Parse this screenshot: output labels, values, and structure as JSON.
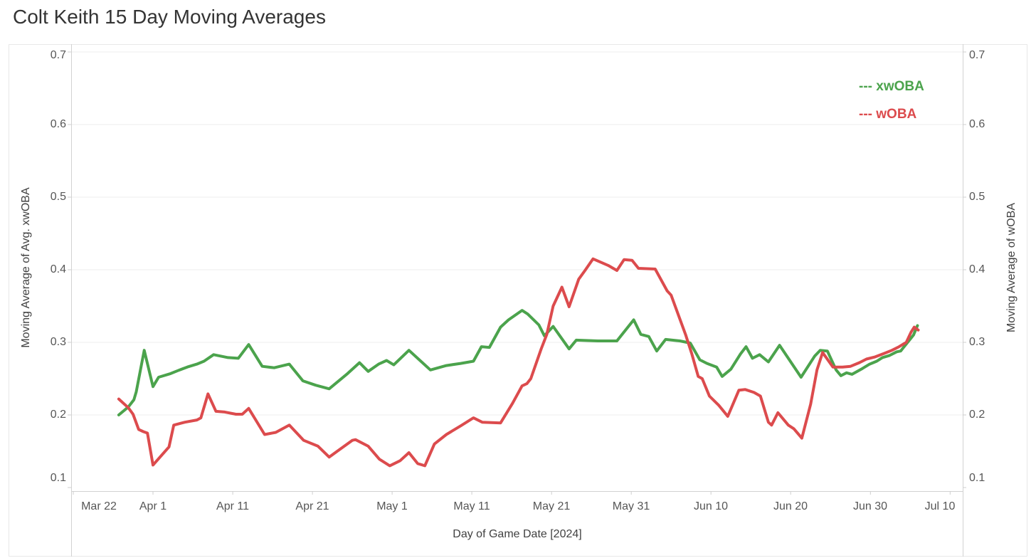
{
  "title": "Colt Keith 15 Day Moving Averages",
  "chart_data": {
    "type": "line",
    "title": "Colt Keith 15 Day Moving Averages",
    "background": "#ffffff",
    "grid": "horizontal-on",
    "legend_position": "top-right-inside",
    "legend": [
      {
        "label": "--- xwOBA",
        "color": "#4BA34C"
      },
      {
        "label": "--- wOBA",
        "color": "#DC4B4D"
      }
    ],
    "x_axis": {
      "label": "Day of Game Date [2024]",
      "domain_days": [
        -0.27,
        111.58
      ],
      "day_zero": "Mar 22",
      "ticks": [
        {
          "label": "Mar 22",
          "day": 0
        },
        {
          "label": "Apr 1",
          "day": 10
        },
        {
          "label": "Apr 11",
          "day": 20
        },
        {
          "label": "Apr 21",
          "day": 30
        },
        {
          "label": "May 1",
          "day": 40
        },
        {
          "label": "May 11",
          "day": 50
        },
        {
          "label": "May 21",
          "day": 60
        },
        {
          "label": "May 31",
          "day": 70
        },
        {
          "label": "Jun 10",
          "day": 80
        },
        {
          "label": "Jun 20",
          "day": 90
        },
        {
          "label": "Jun 30",
          "day": 100
        },
        {
          "label": "Jul 10",
          "day": 110
        }
      ]
    },
    "y_axis_left": {
      "label": "Moving Average of Avg. xwOBA",
      "tick_values": [
        0.1,
        0.2,
        0.3,
        0.4,
        0.5,
        0.6,
        0.7
      ],
      "domain": [
        0.0951,
        0.7108
      ]
    },
    "y_axis_right": {
      "label": "Moving Average of wOBA",
      "tick_values": [
        0.1,
        0.2,
        0.3,
        0.4,
        0.5,
        0.6,
        0.7
      ],
      "domain": [
        0.0951,
        0.7108
      ]
    },
    "gridline_values": [
      0.2,
      0.3,
      0.4,
      0.5,
      0.6,
      0.7
    ],
    "series": [
      {
        "name": "xwOBA",
        "color": "#4BA34C",
        "points": [
          [
            5.7,
            0.2
          ],
          [
            6.9,
            0.211
          ],
          [
            7.6,
            0.221
          ],
          [
            7.9,
            0.232
          ],
          [
            8.9,
            0.289
          ],
          [
            10,
            0.239
          ],
          [
            10.7,
            0.252
          ],
          [
            12.2,
            0.257
          ],
          [
            13.1,
            0.261
          ],
          [
            14.3,
            0.266
          ],
          [
            15.5,
            0.27
          ],
          [
            16.4,
            0.274
          ],
          [
            17.6,
            0.283
          ],
          [
            19.4,
            0.279
          ],
          [
            20.7,
            0.278
          ],
          [
            22,
            0.297
          ],
          [
            23.7,
            0.267
          ],
          [
            25.2,
            0.265
          ],
          [
            27.1,
            0.27
          ],
          [
            28.8,
            0.247
          ],
          [
            30.4,
            0.241
          ],
          [
            32.1,
            0.236
          ],
          [
            34.4,
            0.257
          ],
          [
            35.9,
            0.272
          ],
          [
            37,
            0.26
          ],
          [
            38.3,
            0.27
          ],
          [
            39.3,
            0.275
          ],
          [
            40.2,
            0.269
          ],
          [
            42.1,
            0.289
          ],
          [
            44.8,
            0.262
          ],
          [
            46.8,
            0.268
          ],
          [
            48.6,
            0.271
          ],
          [
            50.2,
            0.274
          ],
          [
            51.2,
            0.294
          ],
          [
            52.2,
            0.293
          ],
          [
            53.6,
            0.321
          ],
          [
            54.6,
            0.331
          ],
          [
            56.3,
            0.344
          ],
          [
            57,
            0.339
          ],
          [
            58.4,
            0.324
          ],
          [
            59.1,
            0.309
          ],
          [
            60.2,
            0.322
          ],
          [
            62.2,
            0.291
          ],
          [
            63.1,
            0.303
          ],
          [
            65.8,
            0.302
          ],
          [
            68.2,
            0.302
          ],
          [
            70.3,
            0.331
          ],
          [
            71.2,
            0.311
          ],
          [
            72.2,
            0.308
          ],
          [
            73.2,
            0.288
          ],
          [
            74.3,
            0.304
          ],
          [
            76.1,
            0.302
          ],
          [
            77.4,
            0.299
          ],
          [
            78.6,
            0.276
          ],
          [
            79.5,
            0.271
          ],
          [
            80.7,
            0.266
          ],
          [
            81.4,
            0.253
          ],
          [
            82.5,
            0.263
          ],
          [
            83.7,
            0.284
          ],
          [
            84.4,
            0.294
          ],
          [
            85.2,
            0.278
          ],
          [
            86.1,
            0.283
          ],
          [
            87.2,
            0.273
          ],
          [
            88.6,
            0.296
          ],
          [
            89.7,
            0.278
          ],
          [
            91.3,
            0.252
          ],
          [
            93,
            0.281
          ],
          [
            93.7,
            0.289
          ],
          [
            94.6,
            0.288
          ],
          [
            95.7,
            0.262
          ],
          [
            96.3,
            0.254
          ],
          [
            97,
            0.258
          ],
          [
            97.7,
            0.256
          ],
          [
            98.2,
            0.259
          ],
          [
            99,
            0.264
          ],
          [
            99.9,
            0.27
          ],
          [
            100.8,
            0.274
          ],
          [
            101.5,
            0.279
          ],
          [
            102.4,
            0.282
          ],
          [
            103.3,
            0.287
          ],
          [
            103.8,
            0.288
          ],
          [
            104.6,
            0.299
          ],
          [
            105.4,
            0.31
          ],
          [
            105.9,
            0.323
          ]
        ]
      },
      {
        "name": "wOBA",
        "color": "#DC4B4D",
        "points": [
          [
            5.7,
            0.222
          ],
          [
            6.9,
            0.21
          ],
          [
            7.5,
            0.201
          ],
          [
            8.2,
            0.18
          ],
          [
            8.8,
            0.177
          ],
          [
            9.3,
            0.175
          ],
          [
            10,
            0.131
          ],
          [
            12,
            0.156
          ],
          [
            12.6,
            0.186
          ],
          [
            14,
            0.19
          ],
          [
            15.5,
            0.193
          ],
          [
            16,
            0.196
          ],
          [
            16.9,
            0.229
          ],
          [
            17.9,
            0.205
          ],
          [
            19,
            0.204
          ],
          [
            20.4,
            0.201
          ],
          [
            21.2,
            0.201
          ],
          [
            22,
            0.209
          ],
          [
            24,
            0.173
          ],
          [
            25.4,
            0.176
          ],
          [
            27.1,
            0.186
          ],
          [
            28.9,
            0.165
          ],
          [
            30.7,
            0.157
          ],
          [
            32.1,
            0.142
          ],
          [
            35,
            0.165
          ],
          [
            35.4,
            0.166
          ],
          [
            37,
            0.157
          ],
          [
            38.4,
            0.139
          ],
          [
            39.7,
            0.13
          ],
          [
            41,
            0.137
          ],
          [
            42.1,
            0.148
          ],
          [
            43.2,
            0.133
          ],
          [
            44.1,
            0.13
          ],
          [
            45.3,
            0.16
          ],
          [
            46.8,
            0.173
          ],
          [
            48.6,
            0.185
          ],
          [
            50.2,
            0.196
          ],
          [
            51.3,
            0.19
          ],
          [
            53.6,
            0.189
          ],
          [
            55.1,
            0.216
          ],
          [
            56.3,
            0.24
          ],
          [
            56.9,
            0.243
          ],
          [
            57.4,
            0.25
          ],
          [
            58.7,
            0.291
          ],
          [
            59.4,
            0.311
          ],
          [
            60.2,
            0.35
          ],
          [
            61.3,
            0.376
          ],
          [
            62.2,
            0.349
          ],
          [
            63.4,
            0.387
          ],
          [
            64.2,
            0.399
          ],
          [
            65.2,
            0.415
          ],
          [
            67.1,
            0.406
          ],
          [
            68.2,
            0.399
          ],
          [
            69.1,
            0.414
          ],
          [
            70.1,
            0.413
          ],
          [
            70.9,
            0.402
          ],
          [
            73,
            0.401
          ],
          [
            74.5,
            0.371
          ],
          [
            75,
            0.365
          ],
          [
            76.8,
            0.311
          ],
          [
            77.6,
            0.284
          ],
          [
            78.4,
            0.253
          ],
          [
            78.9,
            0.25
          ],
          [
            79.8,
            0.226
          ],
          [
            81,
            0.213
          ],
          [
            82.1,
            0.198
          ],
          [
            83.5,
            0.234
          ],
          [
            84.3,
            0.235
          ],
          [
            85.4,
            0.231
          ],
          [
            86.2,
            0.226
          ],
          [
            87.2,
            0.19
          ],
          [
            87.6,
            0.186
          ],
          [
            88.4,
            0.203
          ],
          [
            89.7,
            0.186
          ],
          [
            90.4,
            0.181
          ],
          [
            91.4,
            0.168
          ],
          [
            92.5,
            0.215
          ],
          [
            93.3,
            0.262
          ],
          [
            94,
            0.286
          ],
          [
            95.3,
            0.266
          ],
          [
            96.5,
            0.266
          ],
          [
            97.5,
            0.267
          ],
          [
            98.6,
            0.272
          ],
          [
            99.5,
            0.277
          ],
          [
            100.6,
            0.28
          ],
          [
            101.8,
            0.285
          ],
          [
            102.7,
            0.289
          ],
          [
            103.6,
            0.294
          ],
          [
            104.5,
            0.3
          ],
          [
            105.1,
            0.314
          ],
          [
            105.5,
            0.321
          ],
          [
            106,
            0.317
          ]
        ]
      }
    ]
  }
}
